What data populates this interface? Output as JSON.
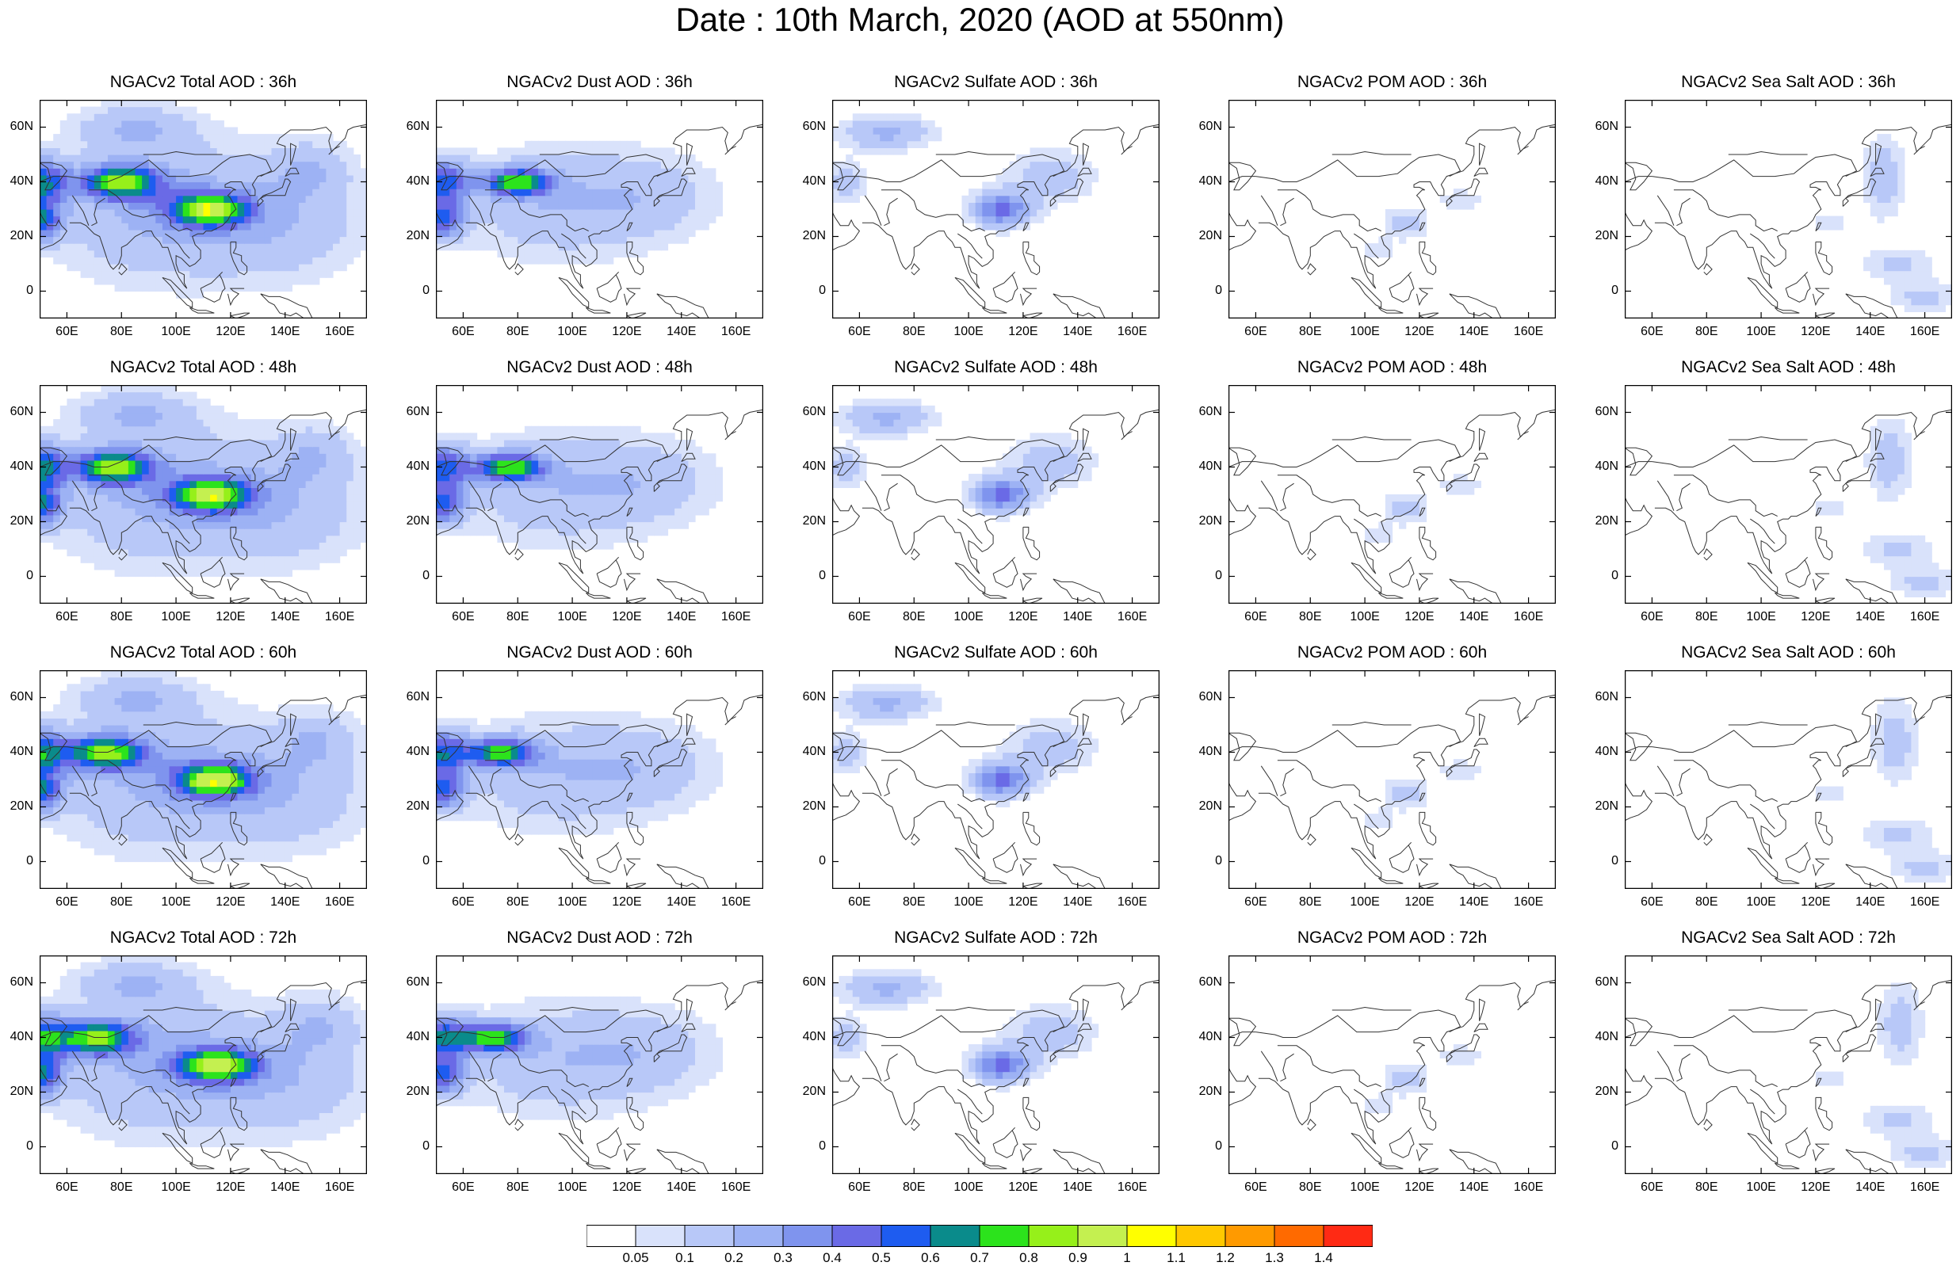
{
  "title": "Date : 10th March, 2020 (AOD at 550nm)",
  "panel_titles": [
    [
      "NGACv2 Total AOD : 36h",
      "NGACv2 Dust AOD : 36h",
      "NGACv2 Sulfate AOD : 36h",
      "NGACv2 POM AOD : 36h",
      "NGACv2 Sea Salt AOD : 36h"
    ],
    [
      "NGACv2 Total AOD : 48h",
      "NGACv2 Dust AOD : 48h",
      "NGACv2 Sulfate AOD : 48h",
      "NGACv2 POM AOD : 48h",
      "NGACv2 Sea Salt AOD : 48h"
    ],
    [
      "NGACv2 Total AOD : 60h",
      "NGACv2 Dust AOD : 60h",
      "NGACv2 Sulfate AOD : 60h",
      "NGACv2 POM AOD : 60h",
      "NGACv2 Sea Salt AOD : 60h"
    ],
    [
      "NGACv2 Total AOD : 72h",
      "NGACv2 Dust AOD : 72h",
      "NGACv2 Sulfate AOD : 72h",
      "NGACv2 POM AOD : 72h",
      "NGACv2 Sea Salt  AOD : 72h"
    ]
  ],
  "map_extent": {
    "lon": [
      50,
      170
    ],
    "lat": [
      -10,
      70
    ]
  },
  "lon_ticks": [
    60,
    80,
    100,
    120,
    140,
    160
  ],
  "lon_tick_labels": [
    "60E",
    "80E",
    "100E",
    "120E",
    "140E",
    "160E"
  ],
  "lat_ticks": [
    0,
    20,
    40,
    60
  ],
  "lat_tick_labels": [
    "0",
    "20N",
    "40N",
    "60N"
  ],
  "colorbar": {
    "colors": [
      "#ffffff",
      "#d9e2fb",
      "#b8c8f8",
      "#9db2f4",
      "#7f94ee",
      "#6a6ae6",
      "#1e5cf0",
      "#0a8b8b",
      "#2ce31c",
      "#96f01a",
      "#c4f050",
      "#ffff00",
      "#ffc800",
      "#ff9a00",
      "#ff6a00",
      "#ff2a14"
    ],
    "labels": [
      "0.05",
      "0.1",
      "0.2",
      "0.3",
      "0.4",
      "0.5",
      "0.6",
      "0.7",
      "0.8",
      "0.9",
      "1",
      "1.1",
      "1.2",
      "1.3",
      "1.4"
    ]
  }
}
